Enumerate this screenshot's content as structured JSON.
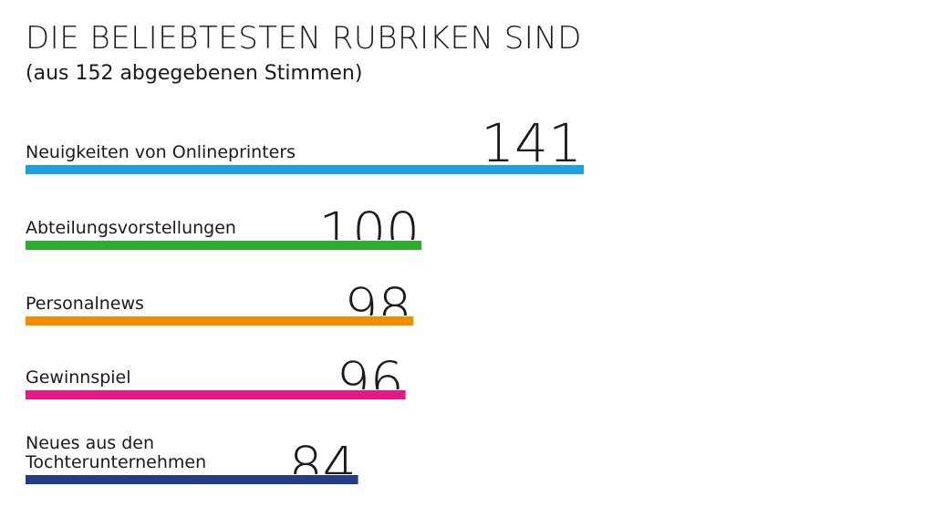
{
  "chart_data": {
    "type": "bar",
    "orientation": "horizontal",
    "title": "DIE BELIEBTESTEN RUBRIKEN SIND",
    "subtitle": "(aus 152 abgegebenen Stimmen)",
    "categories": [
      "Neuigkeiten von Onlineprinters",
      "Abteilungsvorstellungen",
      "Personalnews",
      "Gewinnspiel",
      "Neues aus den Tochterunternehmen"
    ],
    "category_lines": [
      [
        "Neuigkeiten von Onlineprinters"
      ],
      [
        "Abteilungsvorstellungen"
      ],
      [
        "Personalnews"
      ],
      [
        "Gewinnspiel"
      ],
      [
        "Neues aus den",
        "Tochterunternehmen"
      ]
    ],
    "values": [
      141,
      100,
      98,
      96,
      84
    ],
    "value_labels": [
      "141",
      "100",
      "98",
      "96",
      "84"
    ],
    "colors": [
      "#1ea0dc",
      "#2eab2e",
      "#f28c00",
      "#e5198a",
      "#243b86"
    ],
    "xlabel": "",
    "ylabel": "",
    "grid": false,
    "legend": "none"
  }
}
